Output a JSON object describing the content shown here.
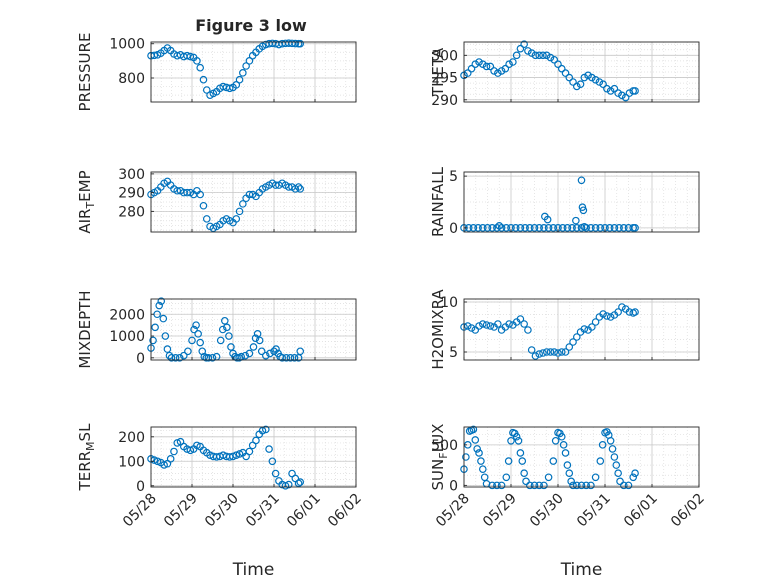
{
  "figure": {
    "title": "Figure 3 low"
  },
  "chart_data": [
    {
      "type": "scatter",
      "panel": "PRESSURE",
      "ylabel": "PRESSURE",
      "title": "Figure 3 low",
      "xlim": [
        "05/28",
        "06/02"
      ],
      "ylim": [
        660,
        1010
      ],
      "yticks": [
        800,
        1000
      ],
      "grid": true,
      "minor_grid": true,
      "x": [
        0.0,
        0.08,
        0.16,
        0.24,
        0.32,
        0.4,
        0.48,
        0.56,
        0.64,
        0.72,
        0.8,
        0.88,
        0.96,
        1.04,
        1.12,
        1.2,
        1.28,
        1.36,
        1.44,
        1.52,
        1.6,
        1.68,
        1.76,
        1.84,
        1.92,
        2.0,
        2.08,
        2.16,
        2.24,
        2.32,
        2.4,
        2.48,
        2.56,
        2.64,
        2.72,
        2.8,
        2.88,
        2.96,
        3.04,
        3.12,
        3.2,
        3.28,
        3.36,
        3.44,
        3.52,
        3.6,
        3.64
      ],
      "values": [
        930,
        932,
        935,
        945,
        960,
        975,
        960,
        940,
        930,
        935,
        925,
        930,
        925,
        920,
        900,
        860,
        790,
        730,
        700,
        710,
        720,
        740,
        750,
        745,
        740,
        745,
        760,
        790,
        830,
        870,
        900,
        930,
        950,
        970,
        985,
        995,
        1000,
        1002,
        1000,
        995,
        1000,
        1002,
        1003,
        1002,
        1001,
        1000,
        1000
      ]
    },
    {
      "type": "scatter",
      "panel": "THETA",
      "ylabel": "THETA",
      "xlim": [
        "05/28",
        "06/02"
      ],
      "ylim": [
        289.5,
        303
      ],
      "yticks": [
        290,
        295,
        300
      ],
      "grid": true,
      "minor_grid": true,
      "x": [
        0.0,
        0.08,
        0.16,
        0.24,
        0.32,
        0.4,
        0.48,
        0.56,
        0.64,
        0.72,
        0.8,
        0.88,
        0.96,
        1.04,
        1.12,
        1.2,
        1.28,
        1.36,
        1.44,
        1.52,
        1.6,
        1.68,
        1.76,
        1.84,
        1.92,
        2.0,
        2.08,
        2.16,
        2.24,
        2.32,
        2.4,
        2.48,
        2.56,
        2.64,
        2.72,
        2.8,
        2.88,
        2.96,
        3.04,
        3.12,
        3.2,
        3.28,
        3.36,
        3.44,
        3.52,
        3.6,
        3.64
      ],
      "values": [
        295.5,
        296.0,
        297.0,
        298.0,
        298.5,
        298.0,
        297.5,
        297.5,
        296.5,
        296.0,
        296.5,
        297.0,
        298.0,
        298.5,
        300.0,
        301.5,
        302.5,
        301.0,
        300.5,
        300.0,
        300.0,
        300.0,
        300.0,
        299.5,
        299.0,
        298.0,
        297.0,
        296.0,
        295.0,
        294.0,
        293.0,
        293.5,
        295.0,
        295.5,
        295.0,
        294.5,
        294.0,
        293.5,
        292.5,
        292.0,
        292.5,
        291.5,
        291.0,
        290.5,
        291.5,
        292.0,
        292.0
      ]
    },
    {
      "type": "scatter",
      "panel": "AIR_TEMP",
      "ylabel": "AIR_TEMP",
      "xlim": [
        "05/28",
        "06/02"
      ],
      "ylim": [
        269,
        301
      ],
      "yticks": [
        280,
        290,
        300
      ],
      "grid": true,
      "minor_grid": true,
      "x": [
        0.0,
        0.08,
        0.16,
        0.24,
        0.32,
        0.4,
        0.48,
        0.56,
        0.64,
        0.72,
        0.8,
        0.88,
        0.96,
        1.04,
        1.12,
        1.2,
        1.28,
        1.36,
        1.44,
        1.52,
        1.6,
        1.68,
        1.76,
        1.84,
        1.92,
        2.0,
        2.08,
        2.16,
        2.24,
        2.32,
        2.4,
        2.48,
        2.56,
        2.64,
        2.72,
        2.8,
        2.88,
        2.96,
        3.04,
        3.12,
        3.2,
        3.28,
        3.36,
        3.44,
        3.52,
        3.6,
        3.64
      ],
      "values": [
        289,
        290,
        291,
        293,
        295,
        296,
        294,
        292,
        291,
        291,
        290,
        290,
        290,
        289,
        291,
        289,
        283,
        276,
        272,
        271,
        272,
        273,
        275,
        276,
        275,
        274,
        276,
        280,
        284,
        287,
        289,
        289,
        288,
        290,
        292,
        293,
        294,
        295,
        294,
        294,
        295,
        294,
        293,
        293,
        292,
        293,
        292
      ]
    },
    {
      "type": "scatter",
      "panel": "RAINFALL",
      "ylabel": "RAINFALL",
      "xlim": [
        "05/28",
        "06/02"
      ],
      "ylim": [
        -0.4,
        5.4
      ],
      "yticks": [
        0,
        5
      ],
      "grid": true,
      "minor_grid": true,
      "x": [
        0.0,
        0.1,
        0.2,
        0.3,
        0.4,
        0.5,
        0.6,
        0.7,
        0.8,
        0.9,
        1.0,
        1.1,
        1.2,
        1.3,
        1.4,
        1.5,
        1.6,
        1.7,
        1.8,
        1.9,
        2.0,
        2.1,
        2.2,
        2.3,
        2.4,
        2.5,
        2.6,
        2.7,
        2.8,
        2.9,
        3.0,
        3.1,
        3.2,
        3.3,
        3.4,
        3.5,
        3.6,
        3.64,
        0.75,
        1.72,
        1.78,
        2.38,
        2.5,
        2.52,
        2.54,
        2.56
      ],
      "values": [
        0,
        0,
        0,
        0,
        0,
        0,
        0,
        0,
        0,
        0,
        0,
        0,
        0,
        0,
        0,
        0,
        0,
        0,
        0,
        0,
        0,
        0,
        0,
        0,
        0,
        0,
        0,
        0,
        0,
        0,
        0,
        0,
        0,
        0,
        0,
        0,
        0,
        0,
        0.2,
        1.1,
        0.8,
        0.7,
        4.6,
        2.0,
        1.7,
        0.1
      ]
    },
    {
      "type": "scatter",
      "panel": "MIXDEPTH",
      "ylabel": "MIXDEPTH",
      "xlim": [
        "05/28",
        "06/02"
      ],
      "ylim": [
        -100,
        2700
      ],
      "yticks": [
        0,
        1000,
        2000
      ],
      "grid": true,
      "minor_grid": true,
      "x": [
        0.0,
        0.05,
        0.1,
        0.15,
        0.2,
        0.25,
        0.3,
        0.35,
        0.4,
        0.45,
        0.5,
        0.6,
        0.7,
        0.8,
        0.9,
        1.0,
        1.05,
        1.1,
        1.15,
        1.2,
        1.25,
        1.3,
        1.35,
        1.4,
        1.5,
        1.6,
        1.7,
        1.75,
        1.8,
        1.85,
        1.9,
        1.95,
        2.0,
        2.05,
        2.1,
        2.15,
        2.2,
        2.3,
        2.4,
        2.5,
        2.55,
        2.6,
        2.65,
        2.7,
        2.8,
        2.9,
        3.0,
        3.05,
        3.1,
        3.15,
        3.2,
        3.3,
        3.4,
        3.5,
        3.6,
        3.64
      ],
      "values": [
        450,
        800,
        1400,
        2000,
        2400,
        2600,
        1800,
        1000,
        400,
        100,
        0,
        0,
        0,
        100,
        300,
        800,
        1300,
        1500,
        1100,
        700,
        300,
        50,
        0,
        0,
        0,
        50,
        800,
        1300,
        1700,
        1400,
        1000,
        500,
        200,
        50,
        0,
        0,
        50,
        100,
        200,
        500,
        900,
        1100,
        800,
        300,
        100,
        200,
        300,
        400,
        200,
        50,
        0,
        0,
        0,
        0,
        0,
        300
      ]
    },
    {
      "type": "scatter",
      "panel": "H2OMIXRA",
      "ylabel": "H2OMIXRA",
      "xlim": [
        "05/28",
        "06/02"
      ],
      "ylim": [
        4.2,
        10.3
      ],
      "yticks": [
        5,
        10
      ],
      "grid": true,
      "minor_grid": true,
      "x": [
        0.0,
        0.08,
        0.16,
        0.24,
        0.32,
        0.4,
        0.48,
        0.56,
        0.64,
        0.72,
        0.8,
        0.88,
        0.96,
        1.04,
        1.12,
        1.2,
        1.28,
        1.36,
        1.44,
        1.52,
        1.6,
        1.68,
        1.76,
        1.84,
        1.92,
        2.0,
        2.08,
        2.16,
        2.24,
        2.32,
        2.4,
        2.48,
        2.56,
        2.64,
        2.72,
        2.8,
        2.88,
        2.96,
        3.04,
        3.12,
        3.2,
        3.28,
        3.36,
        3.44,
        3.52,
        3.6,
        3.64
      ],
      "values": [
        7.5,
        7.6,
        7.4,
        7.2,
        7.6,
        7.8,
        7.7,
        7.6,
        7.5,
        7.8,
        7.2,
        7.5,
        7.8,
        7.7,
        8.0,
        8.3,
        7.8,
        7.2,
        5.2,
        4.6,
        4.8,
        4.9,
        5.0,
        5.0,
        5.0,
        4.9,
        5.0,
        5.0,
        5.5,
        6.0,
        6.5,
        7.0,
        7.3,
        7.2,
        7.5,
        8.0,
        8.5,
        8.8,
        8.6,
        8.5,
        8.7,
        9.0,
        9.5,
        9.3,
        9.0,
        8.9,
        9.0
      ]
    },
    {
      "type": "scatter",
      "panel": "TERR_MSL",
      "ylabel": "TERR_MSL",
      "xlim": [
        "05/28",
        "06/02"
      ],
      "ylim": [
        -5,
        240
      ],
      "yticks": [
        0,
        100,
        200
      ],
      "grid": true,
      "minor_grid": true,
      "x": [
        0.0,
        0.08,
        0.16,
        0.24,
        0.32,
        0.4,
        0.48,
        0.56,
        0.64,
        0.72,
        0.8,
        0.88,
        0.96,
        1.04,
        1.12,
        1.2,
        1.28,
        1.36,
        1.44,
        1.52,
        1.6,
        1.68,
        1.76,
        1.84,
        1.92,
        2.0,
        2.08,
        2.16,
        2.24,
        2.32,
        2.4,
        2.48,
        2.56,
        2.64,
        2.72,
        2.8,
        2.88,
        2.96,
        3.04,
        3.12,
        3.2,
        3.28,
        3.36,
        3.44,
        3.52,
        3.6,
        3.64
      ],
      "values": [
        110,
        105,
        100,
        95,
        85,
        90,
        110,
        140,
        175,
        180,
        160,
        150,
        145,
        150,
        165,
        160,
        145,
        135,
        125,
        120,
        118,
        120,
        125,
        120,
        118,
        120,
        125,
        130,
        135,
        120,
        140,
        165,
        185,
        210,
        225,
        230,
        150,
        100,
        50,
        20,
        5,
        0,
        5,
        50,
        30,
        10,
        15
      ]
    },
    {
      "type": "scatter",
      "panel": "SUN_FLUX",
      "ylabel": "SUN_FLUX",
      "xlim": [
        "05/28",
        "06/02"
      ],
      "ylim": [
        -20,
        720
      ],
      "yticks": [
        0,
        500
      ],
      "grid": true,
      "minor_grid": true,
      "x": [
        0.0,
        0.04,
        0.08,
        0.12,
        0.16,
        0.2,
        0.24,
        0.28,
        0.32,
        0.36,
        0.4,
        0.44,
        0.48,
        0.6,
        0.7,
        0.8,
        0.9,
        0.95,
        1.0,
        1.04,
        1.08,
        1.12,
        1.16,
        1.2,
        1.24,
        1.28,
        1.32,
        1.4,
        1.5,
        1.6,
        1.7,
        1.8,
        1.9,
        1.95,
        2.0,
        2.04,
        2.08,
        2.12,
        2.16,
        2.2,
        2.24,
        2.28,
        2.32,
        2.4,
        2.5,
        2.6,
        2.7,
        2.8,
        2.9,
        2.95,
        3.0,
        3.04,
        3.08,
        3.12,
        3.16,
        3.2,
        3.24,
        3.28,
        3.32,
        3.4,
        3.5,
        3.6,
        3.64
      ],
      "values": [
        200,
        350,
        500,
        670,
        680,
        690,
        560,
        450,
        400,
        300,
        200,
        100,
        20,
        0,
        0,
        0,
        100,
        300,
        550,
        650,
        640,
        600,
        550,
        400,
        300,
        150,
        50,
        0,
        0,
        0,
        0,
        100,
        300,
        550,
        650,
        640,
        600,
        500,
        400,
        250,
        150,
        50,
        0,
        0,
        0,
        0,
        0,
        100,
        300,
        500,
        650,
        660,
        620,
        550,
        450,
        350,
        250,
        150,
        50,
        0,
        0,
        100,
        150
      ]
    }
  ],
  "x_axis": {
    "ticks": [
      "05/28",
      "05/29",
      "05/30",
      "05/31",
      "06/01",
      "06/02"
    ],
    "label": "Time"
  },
  "colors": {
    "marker": "#0072BD",
    "grid": "#dcdcdc",
    "axis": "#262626"
  }
}
